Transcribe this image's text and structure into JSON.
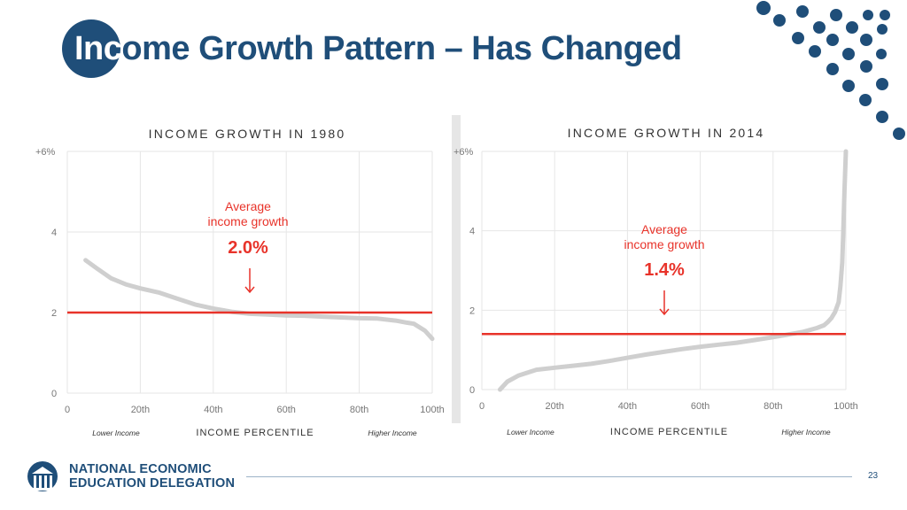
{
  "slide": {
    "title_highlight": "Inc",
    "title_rest": "ome Growth Pattern – Has Changed",
    "page_number": "23"
  },
  "logo": {
    "line1": "NATIONAL ECONOMIC",
    "line2": "EDUCATION DELEGATION",
    "icon": "building-columns-icon"
  },
  "colors": {
    "brand": "#1f4e79",
    "average_line": "#e8332a",
    "curve": "#cfcfcf",
    "annotation": "#e8332a"
  },
  "chart_data": [
    {
      "type": "line",
      "title": "INCOME GROWTH IN 1980",
      "xlabel": "INCOME PERCENTILE",
      "x_left_note": "Lower Income",
      "x_right_note": "Higher Income",
      "xlim": [
        0,
        100
      ],
      "ylim": [
        0,
        6
      ],
      "x_ticks": [
        "0",
        "20th",
        "40th",
        "60th",
        "80th",
        "100th"
      ],
      "y_ticks": [
        "0",
        "2",
        "4",
        "+6%"
      ],
      "grid": true,
      "average": 2.0,
      "annotation": {
        "line1": "Average",
        "line2": "income growth",
        "value": "2.0%"
      },
      "series": [
        {
          "x": [
            5,
            8,
            12,
            16,
            20,
            25,
            30,
            35,
            40,
            45,
            50,
            55,
            60,
            65,
            70,
            75,
            80,
            85,
            90,
            93,
            95,
            98,
            100
          ],
          "y": [
            3.3,
            3.1,
            2.85,
            2.7,
            2.6,
            2.5,
            2.35,
            2.2,
            2.1,
            2.02,
            1.97,
            1.95,
            1.93,
            1.92,
            1.9,
            1.88,
            1.86,
            1.85,
            1.8,
            1.75,
            1.72,
            1.55,
            1.35
          ]
        }
      ]
    },
    {
      "type": "line",
      "title": "INCOME GROWTH IN 2014",
      "xlabel": "INCOME PERCENTILE",
      "x_left_note": "Lower Income",
      "x_right_note": "Higher Income",
      "xlim": [
        0,
        100
      ],
      "ylim": [
        0,
        6
      ],
      "x_ticks": [
        "0",
        "20th",
        "40th",
        "60th",
        "80th",
        "100th"
      ],
      "y_ticks": [
        "0",
        "2",
        "4",
        "+6%"
      ],
      "grid": true,
      "average": 1.4,
      "annotation": {
        "line1": "Average",
        "line2": "income growth",
        "value": "1.4%"
      },
      "series": [
        {
          "x": [
            5,
            7,
            10,
            15,
            20,
            25,
            30,
            35,
            40,
            45,
            50,
            55,
            60,
            65,
            70,
            75,
            80,
            85,
            88,
            90,
            92,
            94,
            95,
            96,
            97,
            98,
            98.5,
            99,
            99.3,
            99.6,
            100
          ],
          "y": [
            0.0,
            0.2,
            0.35,
            0.5,
            0.55,
            0.6,
            0.65,
            0.72,
            0.8,
            0.88,
            0.95,
            1.02,
            1.08,
            1.13,
            1.18,
            1.25,
            1.32,
            1.4,
            1.45,
            1.5,
            1.55,
            1.62,
            1.7,
            1.8,
            1.95,
            2.2,
            2.6,
            3.2,
            4.0,
            5.0,
            6.0
          ]
        }
      ]
    }
  ]
}
